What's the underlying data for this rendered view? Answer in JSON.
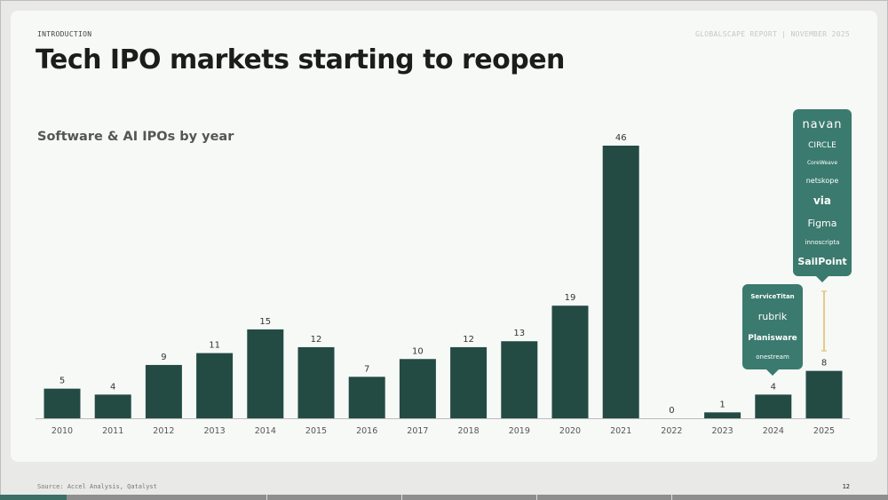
{
  "header": {
    "kicker": "INTRODUCTION",
    "report": "GLOBALSCAPE REPORT | NOVEMBER 2025",
    "title": "Tech IPO markets starting to reopen"
  },
  "chart_data": {
    "type": "bar",
    "title": "Software & AI IPOs by year",
    "categories": [
      "2010",
      "2011",
      "2012",
      "2013",
      "2014",
      "2015",
      "2016",
      "2017",
      "2018",
      "2019",
      "2020",
      "2021",
      "2022",
      "2023",
      "2024",
      "2025"
    ],
    "values": [
      5,
      4,
      9,
      11,
      15,
      12,
      7,
      10,
      12,
      13,
      19,
      46,
      0,
      1,
      4,
      8
    ],
    "ylim": [
      0,
      46
    ],
    "grid": false,
    "bar_color": "#234b44",
    "annotations": [
      {
        "category": "2024",
        "companies": [
          "ServiceTitan",
          "rubrik",
          "Planisware",
          "onestream"
        ]
      },
      {
        "category": "2025",
        "companies": [
          "navan",
          "CIRCLE",
          "CoreWeave",
          "netskope",
          "via",
          "Figma",
          "innoscripta",
          "SailPoint"
        ]
      }
    ]
  },
  "colors": {
    "callout": "#3b7a6e",
    "connector": "#e8c987",
    "bar": "#234b44"
  },
  "footer": {
    "source": "Source: Accel Analysis, Qatalyst",
    "page": "12",
    "progress": 0.075
  }
}
